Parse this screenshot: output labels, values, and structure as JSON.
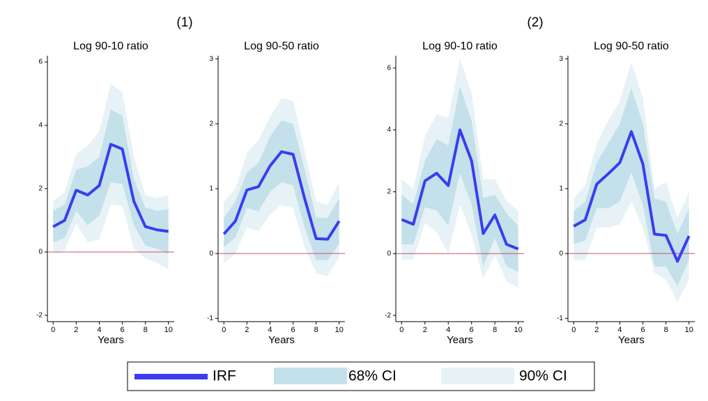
{
  "groups": [
    "(1)",
    "(2)"
  ],
  "chart_data": [
    {
      "type": "band_line",
      "title": "Log 90-10 ratio",
      "x_label": "Years",
      "x": [
        0,
        1,
        2,
        3,
        4,
        5,
        6,
        7,
        8,
        9,
        10
      ],
      "xlim": [
        -0.5,
        10.5
      ],
      "xticks": [
        0,
        2,
        4,
        6,
        8,
        10
      ],
      "ylim": [
        -2.2,
        6.2
      ],
      "yticks": [
        -2,
        0,
        2,
        4,
        6
      ],
      "reference_line": {
        "value": 0,
        "color": "#c8506e"
      },
      "series": [
        {
          "name": "IRF",
          "color": "#3b3bf2",
          "values": [
            0.8,
            1.0,
            1.95,
            1.8,
            2.1,
            3.4,
            3.25,
            1.6,
            0.8,
            0.7,
            0.65
          ]
        },
        {
          "name": "68% CI",
          "color": "#c4e0ea",
          "upper": [
            1.3,
            1.5,
            2.6,
            2.7,
            3.0,
            4.5,
            4.3,
            2.3,
            1.4,
            1.3,
            1.35
          ],
          "lower": [
            0.3,
            0.45,
            1.3,
            0.85,
            1.15,
            2.2,
            2.15,
            0.85,
            0.2,
            0.1,
            -0.05
          ]
        },
        {
          "name": "90% CI",
          "color": "#e6f2f6",
          "upper": [
            1.6,
            1.9,
            3.1,
            3.35,
            3.8,
            5.3,
            5.05,
            3.0,
            1.8,
            1.7,
            1.8
          ],
          "lower": [
            -0.05,
            0.05,
            0.9,
            0.3,
            0.4,
            1.5,
            1.45,
            0.1,
            -0.2,
            -0.35,
            -0.55
          ]
        }
      ]
    },
    {
      "type": "band_line",
      "title": "Log 90-50 ratio",
      "x_label": "Years",
      "x": [
        0,
        1,
        2,
        3,
        4,
        5,
        6,
        7,
        8,
        9,
        10
      ],
      "xlim": [
        -0.5,
        10.5
      ],
      "xticks": [
        0,
        2,
        4,
        6,
        8,
        10
      ],
      "ylim": [
        -1.05,
        3.05
      ],
      "yticks": [
        -1,
        0,
        1,
        2,
        3
      ],
      "reference_line": {
        "value": 0,
        "color": "#c8506e"
      },
      "series": [
        {
          "name": "IRF",
          "color": "#3b3bf2",
          "values": [
            0.3,
            0.5,
            0.98,
            1.03,
            1.35,
            1.57,
            1.53,
            0.85,
            0.23,
            0.22,
            0.5
          ]
        },
        {
          "name": "68% CI",
          "color": "#c4e0ea",
          "upper": [
            0.55,
            0.8,
            1.25,
            1.4,
            1.8,
            2.05,
            2.0,
            1.3,
            0.55,
            0.55,
            0.85
          ],
          "lower": [
            0.1,
            0.25,
            0.7,
            0.65,
            0.95,
            1.1,
            1.05,
            0.4,
            -0.1,
            -0.1,
            0.15
          ]
        },
        {
          "name": "90% CI",
          "color": "#e6f2f6",
          "upper": [
            0.8,
            1.0,
            1.55,
            1.75,
            2.1,
            2.4,
            2.35,
            1.6,
            0.8,
            0.75,
            1.1
          ],
          "lower": [
            -0.15,
            0.0,
            0.4,
            0.35,
            0.6,
            0.75,
            0.7,
            0.1,
            -0.3,
            -0.35,
            -0.05
          ]
        }
      ]
    },
    {
      "type": "band_line",
      "title": "Log 90-10 ratio",
      "x_label": "Years",
      "x": [
        0,
        1,
        2,
        3,
        4,
        5,
        6,
        7,
        8,
        9,
        10
      ],
      "xlim": [
        -0.5,
        10.5
      ],
      "xticks": [
        0,
        2,
        4,
        6,
        8,
        10
      ],
      "ylim": [
        -2.2,
        6.4
      ],
      "yticks": [
        -2,
        0,
        2,
        4,
        6
      ],
      "reference_line": {
        "value": 0,
        "color": "#c8506e"
      },
      "series": [
        {
          "name": "IRF",
          "color": "#3b3bf2",
          "values": [
            1.1,
            0.95,
            2.35,
            2.6,
            2.2,
            4.0,
            3.0,
            0.65,
            1.25,
            0.3,
            0.15
          ]
        },
        {
          "name": "68% CI",
          "color": "#c4e0ea",
          "upper": [
            1.9,
            1.6,
            3.0,
            3.7,
            3.5,
            5.4,
            4.3,
            1.8,
            1.9,
            1.3,
            0.9
          ],
          "lower": [
            0.3,
            0.3,
            1.5,
            1.4,
            0.9,
            2.6,
            1.6,
            -0.4,
            0.5,
            -0.4,
            -0.6
          ]
        },
        {
          "name": "90% CI",
          "color": "#e6f2f6",
          "upper": [
            2.4,
            2.1,
            3.8,
            4.5,
            4.4,
            6.3,
            5.2,
            2.4,
            2.4,
            1.7,
            1.4
          ],
          "lower": [
            -0.2,
            -0.2,
            1.0,
            0.7,
            0.0,
            1.6,
            0.6,
            -0.8,
            -0.05,
            -0.9,
            -1.1
          ]
        }
      ]
    },
    {
      "type": "band_line",
      "title": "Log 90-50 ratio",
      "x_label": "Years",
      "x": [
        0,
        1,
        2,
        3,
        4,
        5,
        6,
        7,
        8,
        9,
        10
      ],
      "xlim": [
        -0.5,
        10.5
      ],
      "xticks": [
        0,
        2,
        4,
        6,
        8,
        10
      ],
      "ylim": [
        -1.05,
        3.05
      ],
      "yticks": [
        -1,
        0,
        1,
        2,
        3
      ],
      "reference_line": {
        "value": 0,
        "color": "#c8506e"
      },
      "series": [
        {
          "name": "IRF",
          "color": "#3b3bf2",
          "values": [
            0.42,
            0.52,
            1.07,
            1.23,
            1.4,
            1.88,
            1.38,
            0.3,
            0.28,
            -0.12,
            0.27
          ]
        },
        {
          "name": "68% CI",
          "color": "#c4e0ea",
          "upper": [
            0.65,
            0.8,
            1.4,
            1.7,
            2.0,
            2.55,
            2.0,
            0.85,
            0.8,
            0.3,
            0.7
          ],
          "lower": [
            0.15,
            0.2,
            0.7,
            0.7,
            0.8,
            1.25,
            0.75,
            -0.2,
            -0.2,
            -0.5,
            -0.1
          ]
        },
        {
          "name": "90% CI",
          "color": "#e6f2f6",
          "upper": [
            0.85,
            1.05,
            1.7,
            2.05,
            2.35,
            2.95,
            2.4,
            1.0,
            1.1,
            0.55,
            0.95
          ],
          "lower": [
            -0.1,
            -0.1,
            0.4,
            0.4,
            0.45,
            0.8,
            0.4,
            -0.3,
            -0.4,
            -0.75,
            -0.4
          ]
        }
      ]
    }
  ]
}
